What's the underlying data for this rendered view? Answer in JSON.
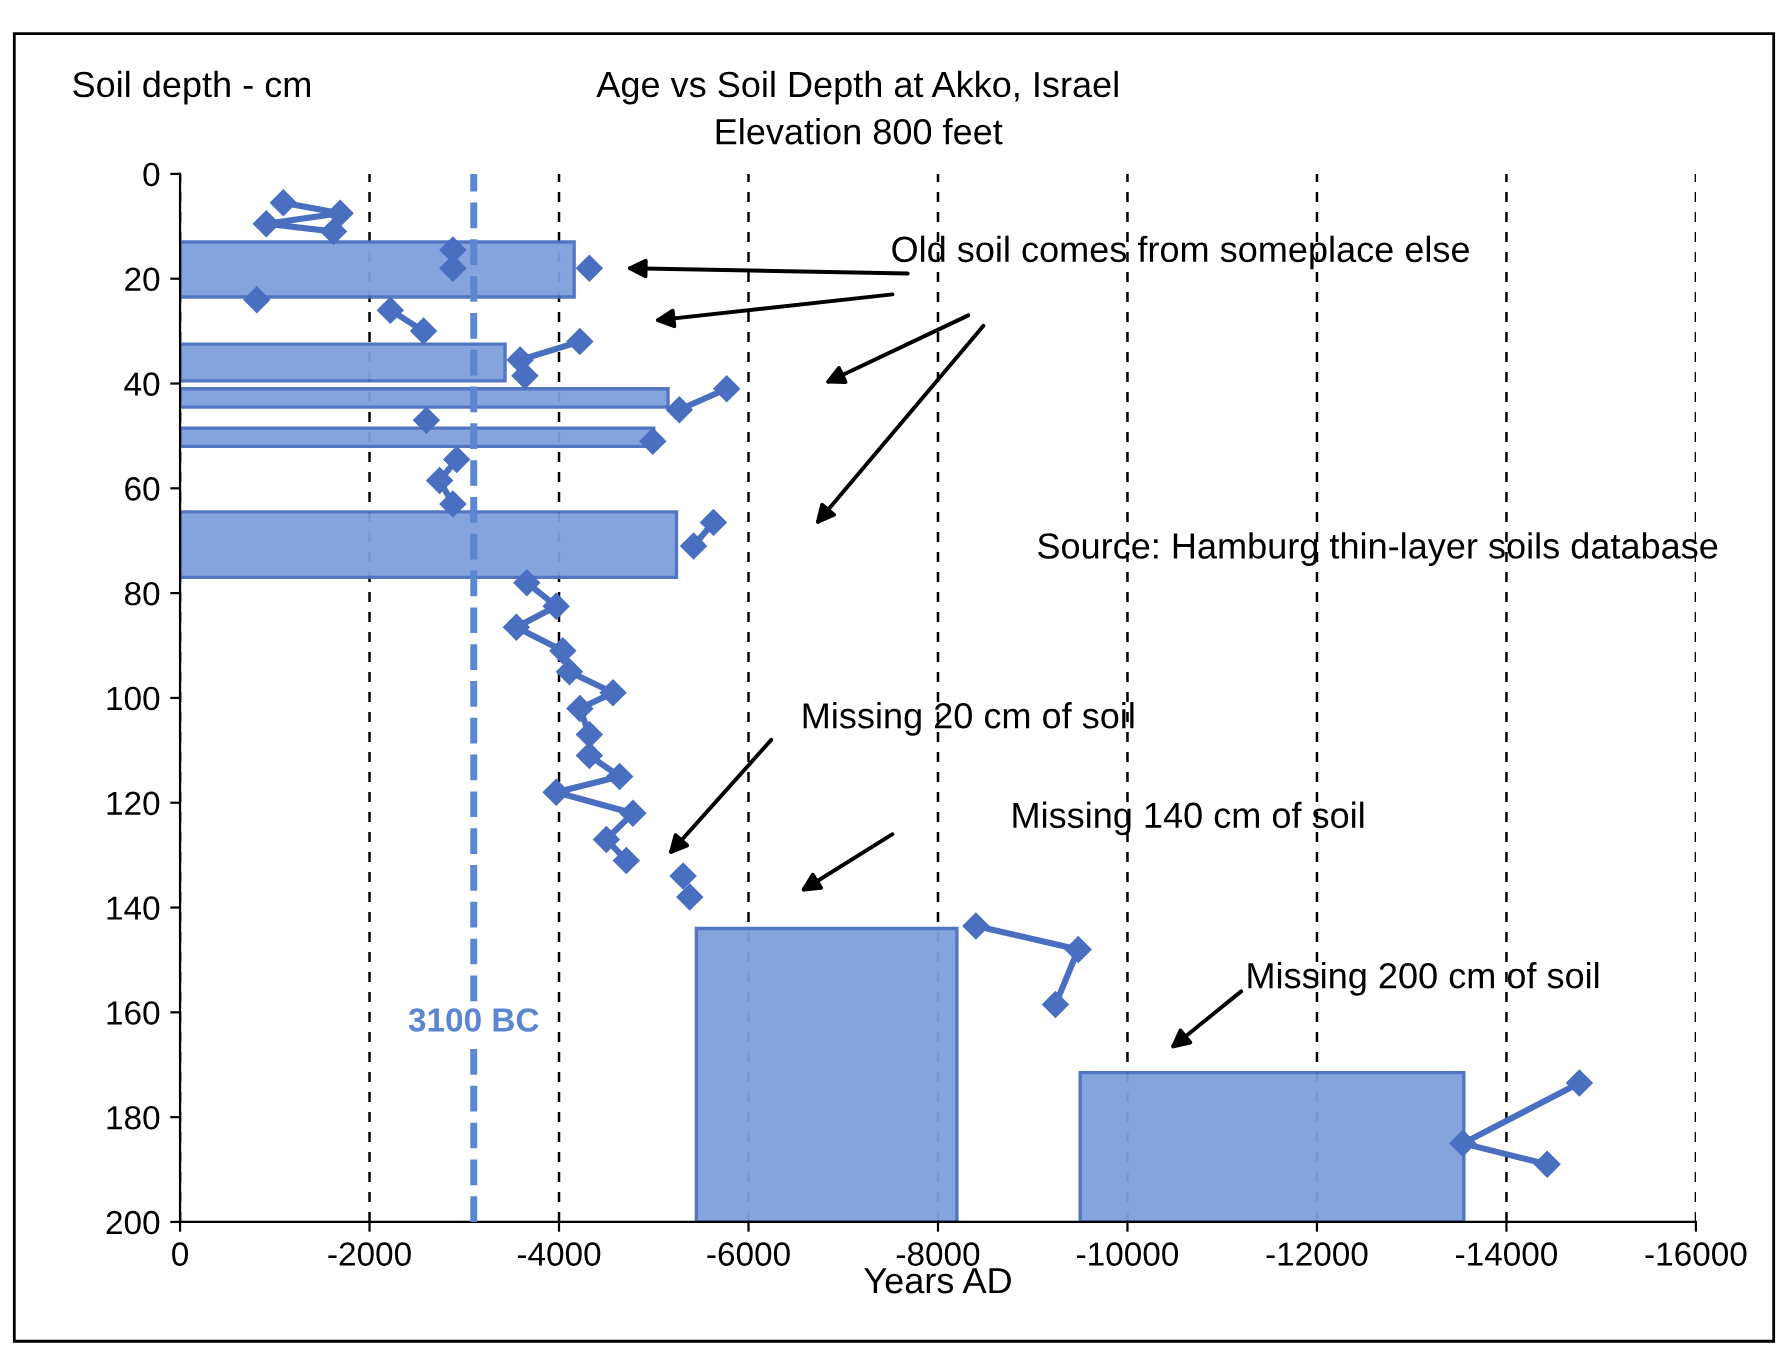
{
  "chart_data": {
    "type": "line",
    "title": "Age vs Soil Depth at Akko, Israel",
    "subtitle": "Elevation 800 feet",
    "xlabel": "Years AD",
    "ylabel": "Soil depth - cm",
    "xlim": [
      0,
      -16000
    ],
    "xticks": [
      0,
      -2000,
      -4000,
      -6000,
      -8000,
      -10000,
      -12000,
      -14000,
      -16000
    ],
    "ylim": [
      200,
      0
    ],
    "yticks": [
      0,
      20,
      40,
      60,
      80,
      100,
      120,
      140,
      160,
      180,
      200
    ],
    "grid": "x",
    "marker": "diamond",
    "line_style": "solid",
    "series": [
      {
        "color": "#4a6fc0",
        "x": [
          -1090,
          -1690,
          -910,
          -1620
        ],
        "values": [
          5.5,
          7.5,
          9.5,
          11
        ]
      },
      {
        "color": "#4a6fc0",
        "x": [
          -2880
        ],
        "values": [
          14.5
        ]
      },
      {
        "color": "#4a6fc0",
        "x": [
          -2880
        ],
        "values": [
          18
        ]
      },
      {
        "color": "#4a6fc0",
        "x": [
          -4320
        ],
        "values": [
          18
        ]
      },
      {
        "color": "#4a6fc0",
        "x": [
          -810
        ],
        "values": [
          24
        ]
      },
      {
        "color": "#4a6fc0",
        "x": [
          -2220,
          -2570
        ],
        "values": [
          26,
          30
        ]
      },
      {
        "color": "#4a6fc0",
        "x": [
          -4220,
          -3590,
          -3640
        ],
        "values": [
          32,
          35.5,
          38.5
        ]
      },
      {
        "color": "#4a6fc0",
        "x": [
          -5770,
          -5270
        ],
        "values": [
          41,
          45
        ]
      },
      {
        "color": "#4a6fc0",
        "x": [
          -2600
        ],
        "values": [
          47
        ]
      },
      {
        "color": "#4a6fc0",
        "x": [
          -4990
        ],
        "values": [
          51
        ]
      },
      {
        "color": "#4a6fc0",
        "x": [
          -2920,
          -2740,
          -2880
        ],
        "values": [
          54.5,
          58.5,
          63
        ]
      },
      {
        "color": "#4a6fc0",
        "x": [
          -5630,
          -5420
        ],
        "values": [
          66.5,
          71
        ]
      },
      {
        "color": "#4a6fc0",
        "x": [
          -3660,
          -3970,
          -3550,
          -4040,
          -4110,
          -4570,
          -4220,
          -4320,
          -4320,
          -4640,
          -3970,
          -4780,
          -4500,
          -4710
        ],
        "values": [
          78,
          82.5,
          86.5,
          91,
          95,
          99,
          102,
          107,
          111,
          115,
          118,
          122,
          127,
          131
        ]
      },
      {
        "color": "#4a6fc0",
        "x": [
          -5310
        ],
        "values": [
          134
        ]
      },
      {
        "color": "#4a6fc0",
        "x": [
          -5380
        ],
        "values": [
          138
        ]
      },
      {
        "color": "#4a6fc0",
        "x": [
          -8400,
          -9480,
          -9240
        ],
        "values": [
          143.5,
          148,
          158.5
        ]
      },
      {
        "color": "#4a6fc0",
        "x": [
          -14770,
          -13540,
          -14430
        ],
        "values": [
          173.5,
          185,
          189
        ]
      }
    ],
    "ref_lines": [
      {
        "axis": "x",
        "value": -3100,
        "label": "3100 BC",
        "color": "#5b86d0",
        "line_style": "dashed"
      }
    ],
    "annotations": [
      "Old soil comes from someplace else",
      "Missing 20 cm of soil",
      "Missing 140 cm of soil",
      "Missing 200 cm of soil",
      "Source: Hamburg thin-layer soils database"
    ]
  }
}
